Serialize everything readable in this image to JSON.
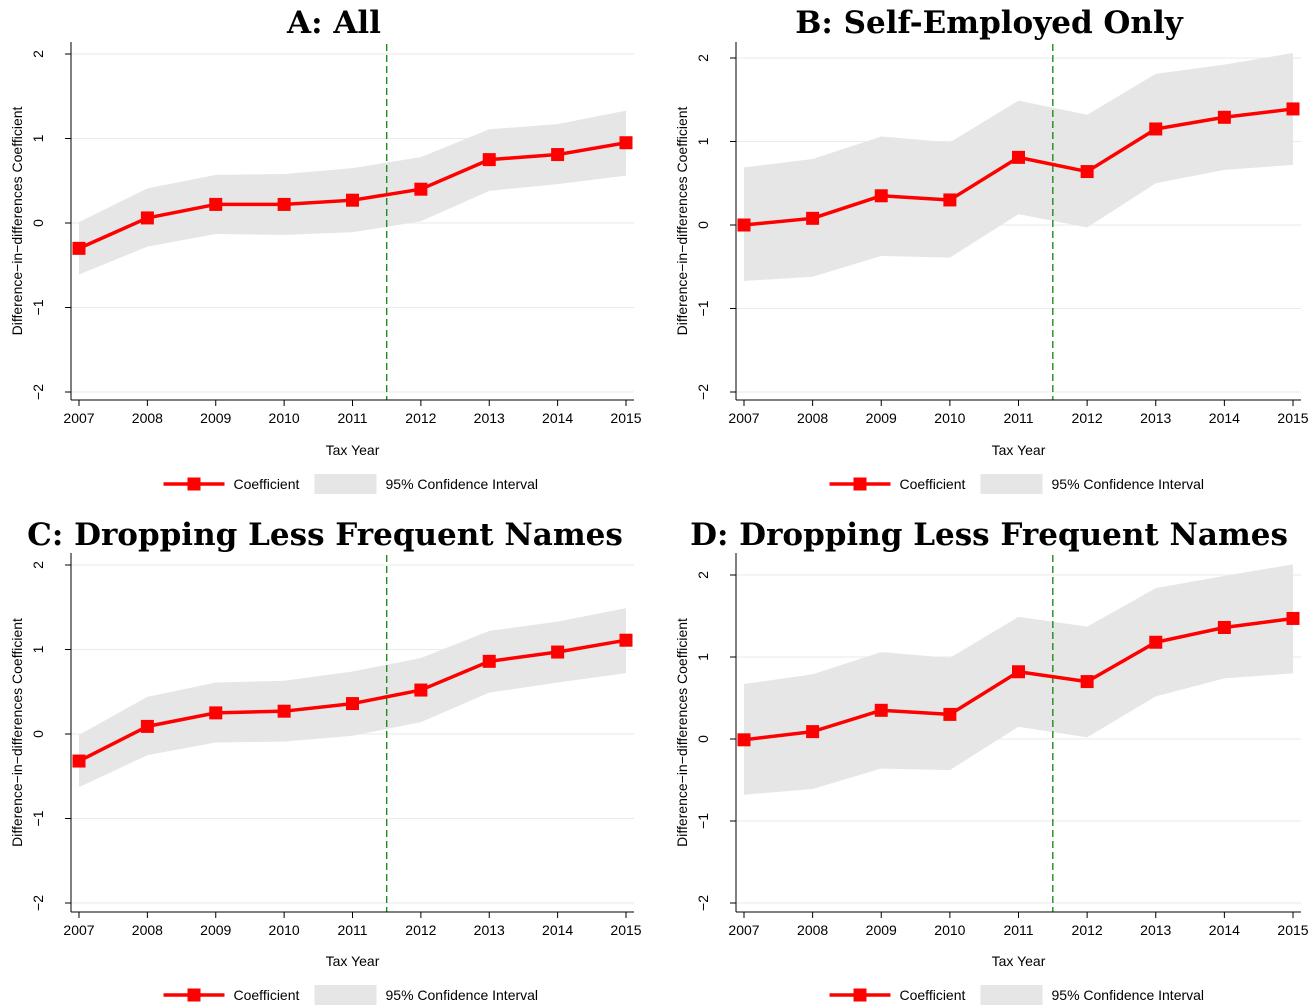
{
  "figure": {
    "colors": {
      "line": "#ff0000",
      "band": "#e6e6e6",
      "vline": "#1e8c1e",
      "grid": "#eaeaea",
      "axis": "#000000"
    }
  },
  "chart_data": [
    {
      "type": "line",
      "title": "A: All",
      "xlabel": "Tax Year",
      "ylabel": "Difference−in−differences Coefficient",
      "x": [
        2007,
        2008,
        2009,
        2010,
        2011,
        2012,
        2013,
        2014,
        2015
      ],
      "xticks": [
        "2007",
        "2008",
        "2009",
        "2010",
        "2011",
        "2012",
        "2013",
        "2014",
        "2015"
      ],
      "yticks": [
        "−2",
        "−1",
        "0",
        "1",
        "2"
      ],
      "ylim": [
        -2,
        2
      ],
      "grid": true,
      "vline_x": 2011.5,
      "series": [
        {
          "name": "Coefficient",
          "values": [
            -0.3,
            0.06,
            0.22,
            0.22,
            0.27,
            0.4,
            0.75,
            0.81,
            0.95
          ]
        },
        {
          "name": "95% Confidence Interval",
          "lower": [
            -0.61,
            -0.28,
            -0.13,
            -0.14,
            -0.11,
            0.02,
            0.38,
            0.46,
            0.56
          ],
          "upper": [
            0.01,
            0.41,
            0.57,
            0.58,
            0.65,
            0.78,
            1.11,
            1.17,
            1.33
          ]
        }
      ],
      "legend": {
        "position": "bottom",
        "items": [
          "Coefficient",
          "95% Confidence Interval"
        ]
      }
    },
    {
      "type": "line",
      "title": "B: Self-Employed Only",
      "xlabel": "Tax Year",
      "ylabel": "Difference−in−differences Coefficient",
      "x": [
        2007,
        2008,
        2009,
        2010,
        2011,
        2012,
        2013,
        2014,
        2015
      ],
      "xticks": [
        "2007",
        "2008",
        "2009",
        "2010",
        "2011",
        "2012",
        "2013",
        "2014",
        "2015"
      ],
      "yticks": [
        "−2",
        "−1",
        "0",
        "1",
        "2"
      ],
      "ylim": [
        -2,
        2
      ],
      "grid": true,
      "vline_x": 2011.5,
      "series": [
        {
          "name": "Coefficient",
          "values": [
            0.0,
            0.08,
            0.35,
            0.3,
            0.81,
            0.64,
            1.15,
            1.29,
            1.39
          ]
        },
        {
          "name": "95% Confidence Interval",
          "lower": [
            -0.67,
            -0.62,
            -0.37,
            -0.39,
            0.13,
            -0.03,
            0.5,
            0.66,
            0.72
          ],
          "upper": [
            0.69,
            0.79,
            1.06,
            0.99,
            1.49,
            1.32,
            1.81,
            1.92,
            2.06
          ]
        }
      ],
      "legend": {
        "position": "bottom",
        "items": [
          "Coefficient",
          "95% Confidence Interval"
        ]
      }
    },
    {
      "type": "line",
      "title": "C: Dropping Less Frequent Names",
      "xlabel": "Tax Year",
      "ylabel": "Difference−in−differences Coefficient",
      "x": [
        2007,
        2008,
        2009,
        2010,
        2011,
        2012,
        2013,
        2014,
        2015
      ],
      "xticks": [
        "2007",
        "2008",
        "2009",
        "2010",
        "2011",
        "2012",
        "2013",
        "2014",
        "2015"
      ],
      "yticks": [
        "−2",
        "−1",
        "0",
        "1",
        "2"
      ],
      "ylim": [
        -2,
        2
      ],
      "grid": true,
      "vline_x": 2011.5,
      "series": [
        {
          "name": "Coefficient",
          "values": [
            -0.32,
            0.09,
            0.25,
            0.27,
            0.36,
            0.52,
            0.86,
            0.97,
            1.11
          ]
        },
        {
          "name": "95% Confidence Interval",
          "lower": [
            -0.63,
            -0.25,
            -0.1,
            -0.09,
            -0.02,
            0.14,
            0.49,
            0.61,
            0.72
          ],
          "upper": [
            -0.01,
            0.44,
            0.61,
            0.63,
            0.74,
            0.9,
            1.22,
            1.33,
            1.49
          ]
        }
      ],
      "legend": {
        "position": "bottom",
        "items": [
          "Coefficient",
          "95% Confidence Interval"
        ]
      }
    },
    {
      "type": "line",
      "title": "D: Dropping Less Frequent Names",
      "xlabel": "Tax Year",
      "ylabel": "Difference−in−differences Coefficient",
      "x": [
        2007,
        2008,
        2009,
        2010,
        2011,
        2012,
        2013,
        2014,
        2015
      ],
      "xticks": [
        "2007",
        "2008",
        "2009",
        "2010",
        "2011",
        "2012",
        "2013",
        "2014",
        "2015"
      ],
      "yticks": [
        "−2",
        "−1",
        "0",
        "1",
        "2"
      ],
      "ylim": [
        -2,
        2
      ],
      "grid": true,
      "vline_x": 2011.5,
      "series": [
        {
          "name": "Coefficient",
          "values": [
            -0.01,
            0.09,
            0.35,
            0.3,
            0.82,
            0.7,
            1.18,
            1.36,
            1.47
          ]
        },
        {
          "name": "95% Confidence Interval",
          "lower": [
            -0.68,
            -0.61,
            -0.36,
            -0.38,
            0.15,
            0.02,
            0.52,
            0.74,
            0.8
          ],
          "upper": [
            0.67,
            0.79,
            1.06,
            0.99,
            1.49,
            1.37,
            1.84,
            1.99,
            2.13
          ]
        }
      ],
      "legend": {
        "position": "bottom",
        "items": [
          "Coefficient",
          "95% Confidence Interval"
        ]
      }
    }
  ]
}
